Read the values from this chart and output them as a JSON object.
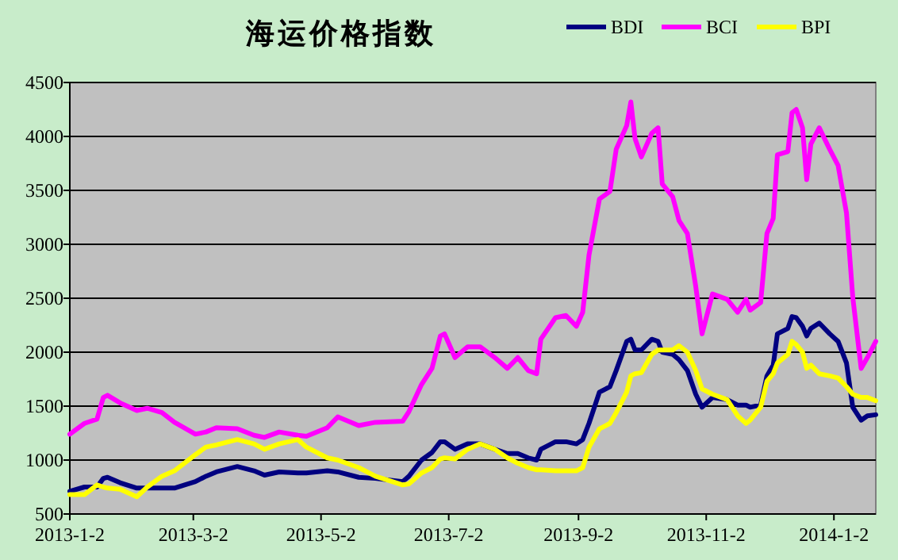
{
  "chart_data": {
    "type": "line",
    "title": "海运价格指数",
    "x": [
      "2013-01-02",
      "2013-01-09",
      "2013-01-15",
      "2013-01-18",
      "2013-01-20",
      "2013-01-26",
      "2013-02-03",
      "2013-02-08",
      "2013-02-15",
      "2013-02-21",
      "2013-03-03",
      "2013-03-08",
      "2013-03-13",
      "2013-03-23",
      "2013-03-31",
      "2013-04-05",
      "2013-04-12",
      "2013-04-21",
      "2013-04-25",
      "2013-05-05",
      "2013-05-10",
      "2013-05-20",
      "2013-05-28",
      "2013-06-10",
      "2013-06-13",
      "2013-06-19",
      "2013-06-24",
      "2013-06-28",
      "2013-06-30",
      "2013-07-05",
      "2013-07-11",
      "2013-07-17",
      "2013-07-24",
      "2013-07-30",
      "2013-08-04",
      "2013-08-09",
      "2013-08-13",
      "2013-08-15",
      "2013-08-22",
      "2013-08-27",
      "2013-09-01",
      "2013-09-04",
      "2013-09-07",
      "2013-09-12",
      "2013-09-17",
      "2013-09-20",
      "2013-09-25",
      "2013-09-27",
      "2013-09-29",
      "2013-10-02",
      "2013-10-07",
      "2013-10-10",
      "2013-10-12",
      "2013-10-17",
      "2013-10-20",
      "2013-10-24",
      "2013-10-28",
      "2013-10-31",
      "2013-11-05",
      "2013-11-12",
      "2013-11-17",
      "2013-11-21",
      "2013-11-23",
      "2013-11-28",
      "2013-12-01",
      "2013-12-04",
      "2013-12-06",
      "2013-12-11",
      "2013-12-13",
      "2013-12-15",
      "2013-12-18",
      "2013-12-20",
      "2013-12-22",
      "2013-12-26",
      "2013-12-31",
      "2014-01-04",
      "2014-01-08",
      "2014-01-11",
      "2014-01-15",
      "2014-01-18",
      "2014-01-22"
    ],
    "xlim": [
      "2013-01-02",
      "2014-01-22"
    ],
    "xticks": [
      {
        "value": "2013-01-02",
        "label": "2013-1-2"
      },
      {
        "value": "2013-03-02",
        "label": "2013-3-2"
      },
      {
        "value": "2013-05-02",
        "label": "2013-5-2"
      },
      {
        "value": "2013-07-02",
        "label": "2013-7-2"
      },
      {
        "value": "2013-09-02",
        "label": "2013-9-2"
      },
      {
        "value": "2013-11-02",
        "label": "2013-11-2"
      },
      {
        "value": "2014-01-02",
        "label": "2014-1-2"
      }
    ],
    "ylim": [
      500,
      4500
    ],
    "yticks": [
      500,
      1000,
      1500,
      2000,
      2500,
      3000,
      3500,
      4000,
      4500
    ],
    "grid": "y",
    "legend": "top right",
    "series": [
      {
        "name": "BDI",
        "color": "#000080",
        "values": [
          710,
          750,
          750,
          830,
          840,
          790,
          740,
          740,
          740,
          740,
          800,
          850,
          890,
          940,
          900,
          860,
          890,
          880,
          880,
          900,
          890,
          840,
          830,
          800,
          850,
          1000,
          1070,
          1170,
          1170,
          1100,
          1150,
          1150,
          1100,
          1060,
          1060,
          1020,
          1000,
          1100,
          1170,
          1170,
          1150,
          1190,
          1340,
          1630,
          1680,
          1830,
          2100,
          2120,
          2020,
          2020,
          2120,
          2100,
          2000,
          1980,
          1930,
          1830,
          1610,
          1490,
          1580,
          1560,
          1510,
          1510,
          1490,
          1510,
          1780,
          1880,
          2170,
          2220,
          2330,
          2320,
          2240,
          2150,
          2220,
          2270,
          2170,
          2100,
          1900,
          1490,
          1370,
          1410,
          1420
        ]
      },
      {
        "name": "BCI",
        "color": "#ff00ff",
        "values": [
          1240,
          1340,
          1380,
          1580,
          1600,
          1530,
          1460,
          1480,
          1440,
          1350,
          1240,
          1260,
          1300,
          1290,
          1230,
          1210,
          1260,
          1230,
          1220,
          1300,
          1400,
          1320,
          1350,
          1360,
          1450,
          1700,
          1850,
          2150,
          2170,
          1950,
          2050,
          2050,
          1950,
          1850,
          1950,
          1830,
          1800,
          2120,
          2320,
          2340,
          2240,
          2370,
          2900,
          3420,
          3490,
          3880,
          4100,
          4320,
          3980,
          3810,
          4030,
          4080,
          3560,
          3440,
          3220,
          3100,
          2610,
          2170,
          2540,
          2490,
          2370,
          2490,
          2390,
          2460,
          3100,
          3240,
          3830,
          3860,
          4220,
          4250,
          4080,
          3600,
          3930,
          4080,
          3880,
          3730,
          3290,
          2510,
          1850,
          1950,
          2100
        ]
      },
      {
        "name": "BPI",
        "color": "#ffff00",
        "values": [
          680,
          680,
          770,
          750,
          740,
          730,
          660,
          750,
          850,
          900,
          1050,
          1120,
          1140,
          1190,
          1150,
          1100,
          1150,
          1190,
          1120,
          1020,
          1000,
          930,
          850,
          770,
          780,
          880,
          930,
          1010,
          1020,
          1010,
          1100,
          1150,
          1100,
          1020,
          970,
          930,
          910,
          910,
          900,
          900,
          900,
          930,
          1120,
          1290,
          1340,
          1440,
          1630,
          1780,
          1800,
          1810,
          1980,
          2020,
          2020,
          2020,
          2060,
          2000,
          1830,
          1660,
          1610,
          1560,
          1410,
          1340,
          1370,
          1490,
          1730,
          1800,
          1900,
          1980,
          2100,
          2070,
          2000,
          1850,
          1880,
          1800,
          1780,
          1760,
          1680,
          1610,
          1580,
          1580,
          1550
        ]
      }
    ]
  }
}
